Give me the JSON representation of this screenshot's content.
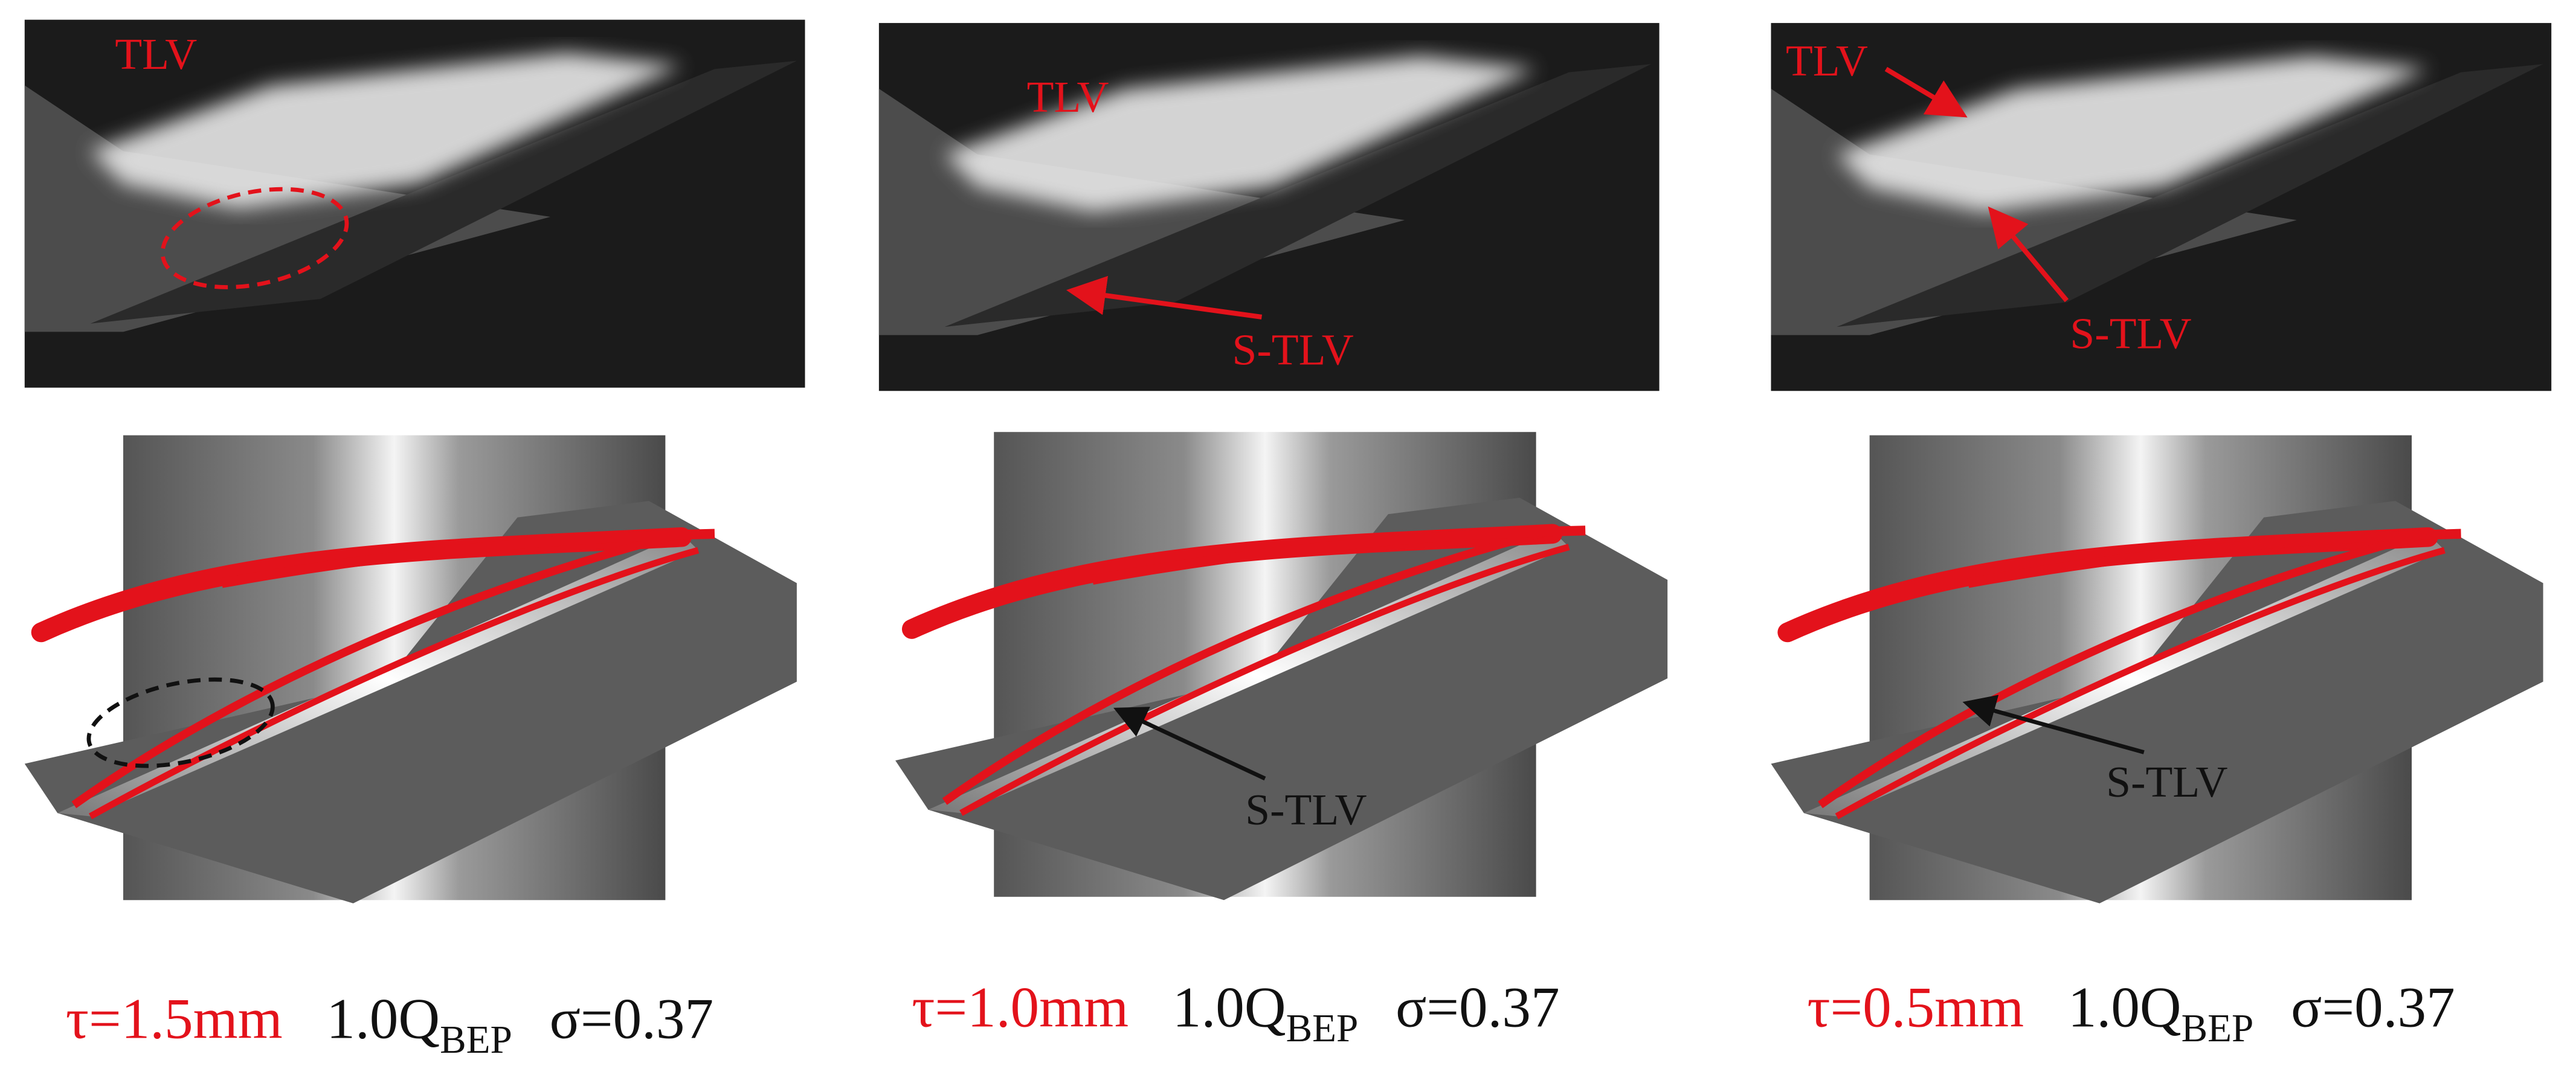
{
  "panels": [
    {
      "photo_labels": [
        "TLV"
      ],
      "caption": {
        "tip_clearance": "τ=1.5mm",
        "flow": "1.0Q",
        "flow_subscript": "BEP",
        "cavitation_number": "σ=0.37"
      }
    },
    {
      "photo_labels": [
        "TLV",
        "S-TLV"
      ],
      "cfd_labels": [
        "S-TLV"
      ],
      "caption": {
        "tip_clearance": "τ=1.0mm",
        "flow": "1.0Q",
        "flow_subscript": "BEP",
        "cavitation_number": "σ=0.37"
      }
    },
    {
      "photo_labels": [
        "TLV",
        "S-TLV"
      ],
      "cfd_labels": [
        "S-TLV"
      ],
      "caption": {
        "tip_clearance": "τ=0.5mm",
        "flow": "1.0Q",
        "flow_subscript": "BEP",
        "cavitation_number": "σ=0.37"
      }
    }
  ]
}
